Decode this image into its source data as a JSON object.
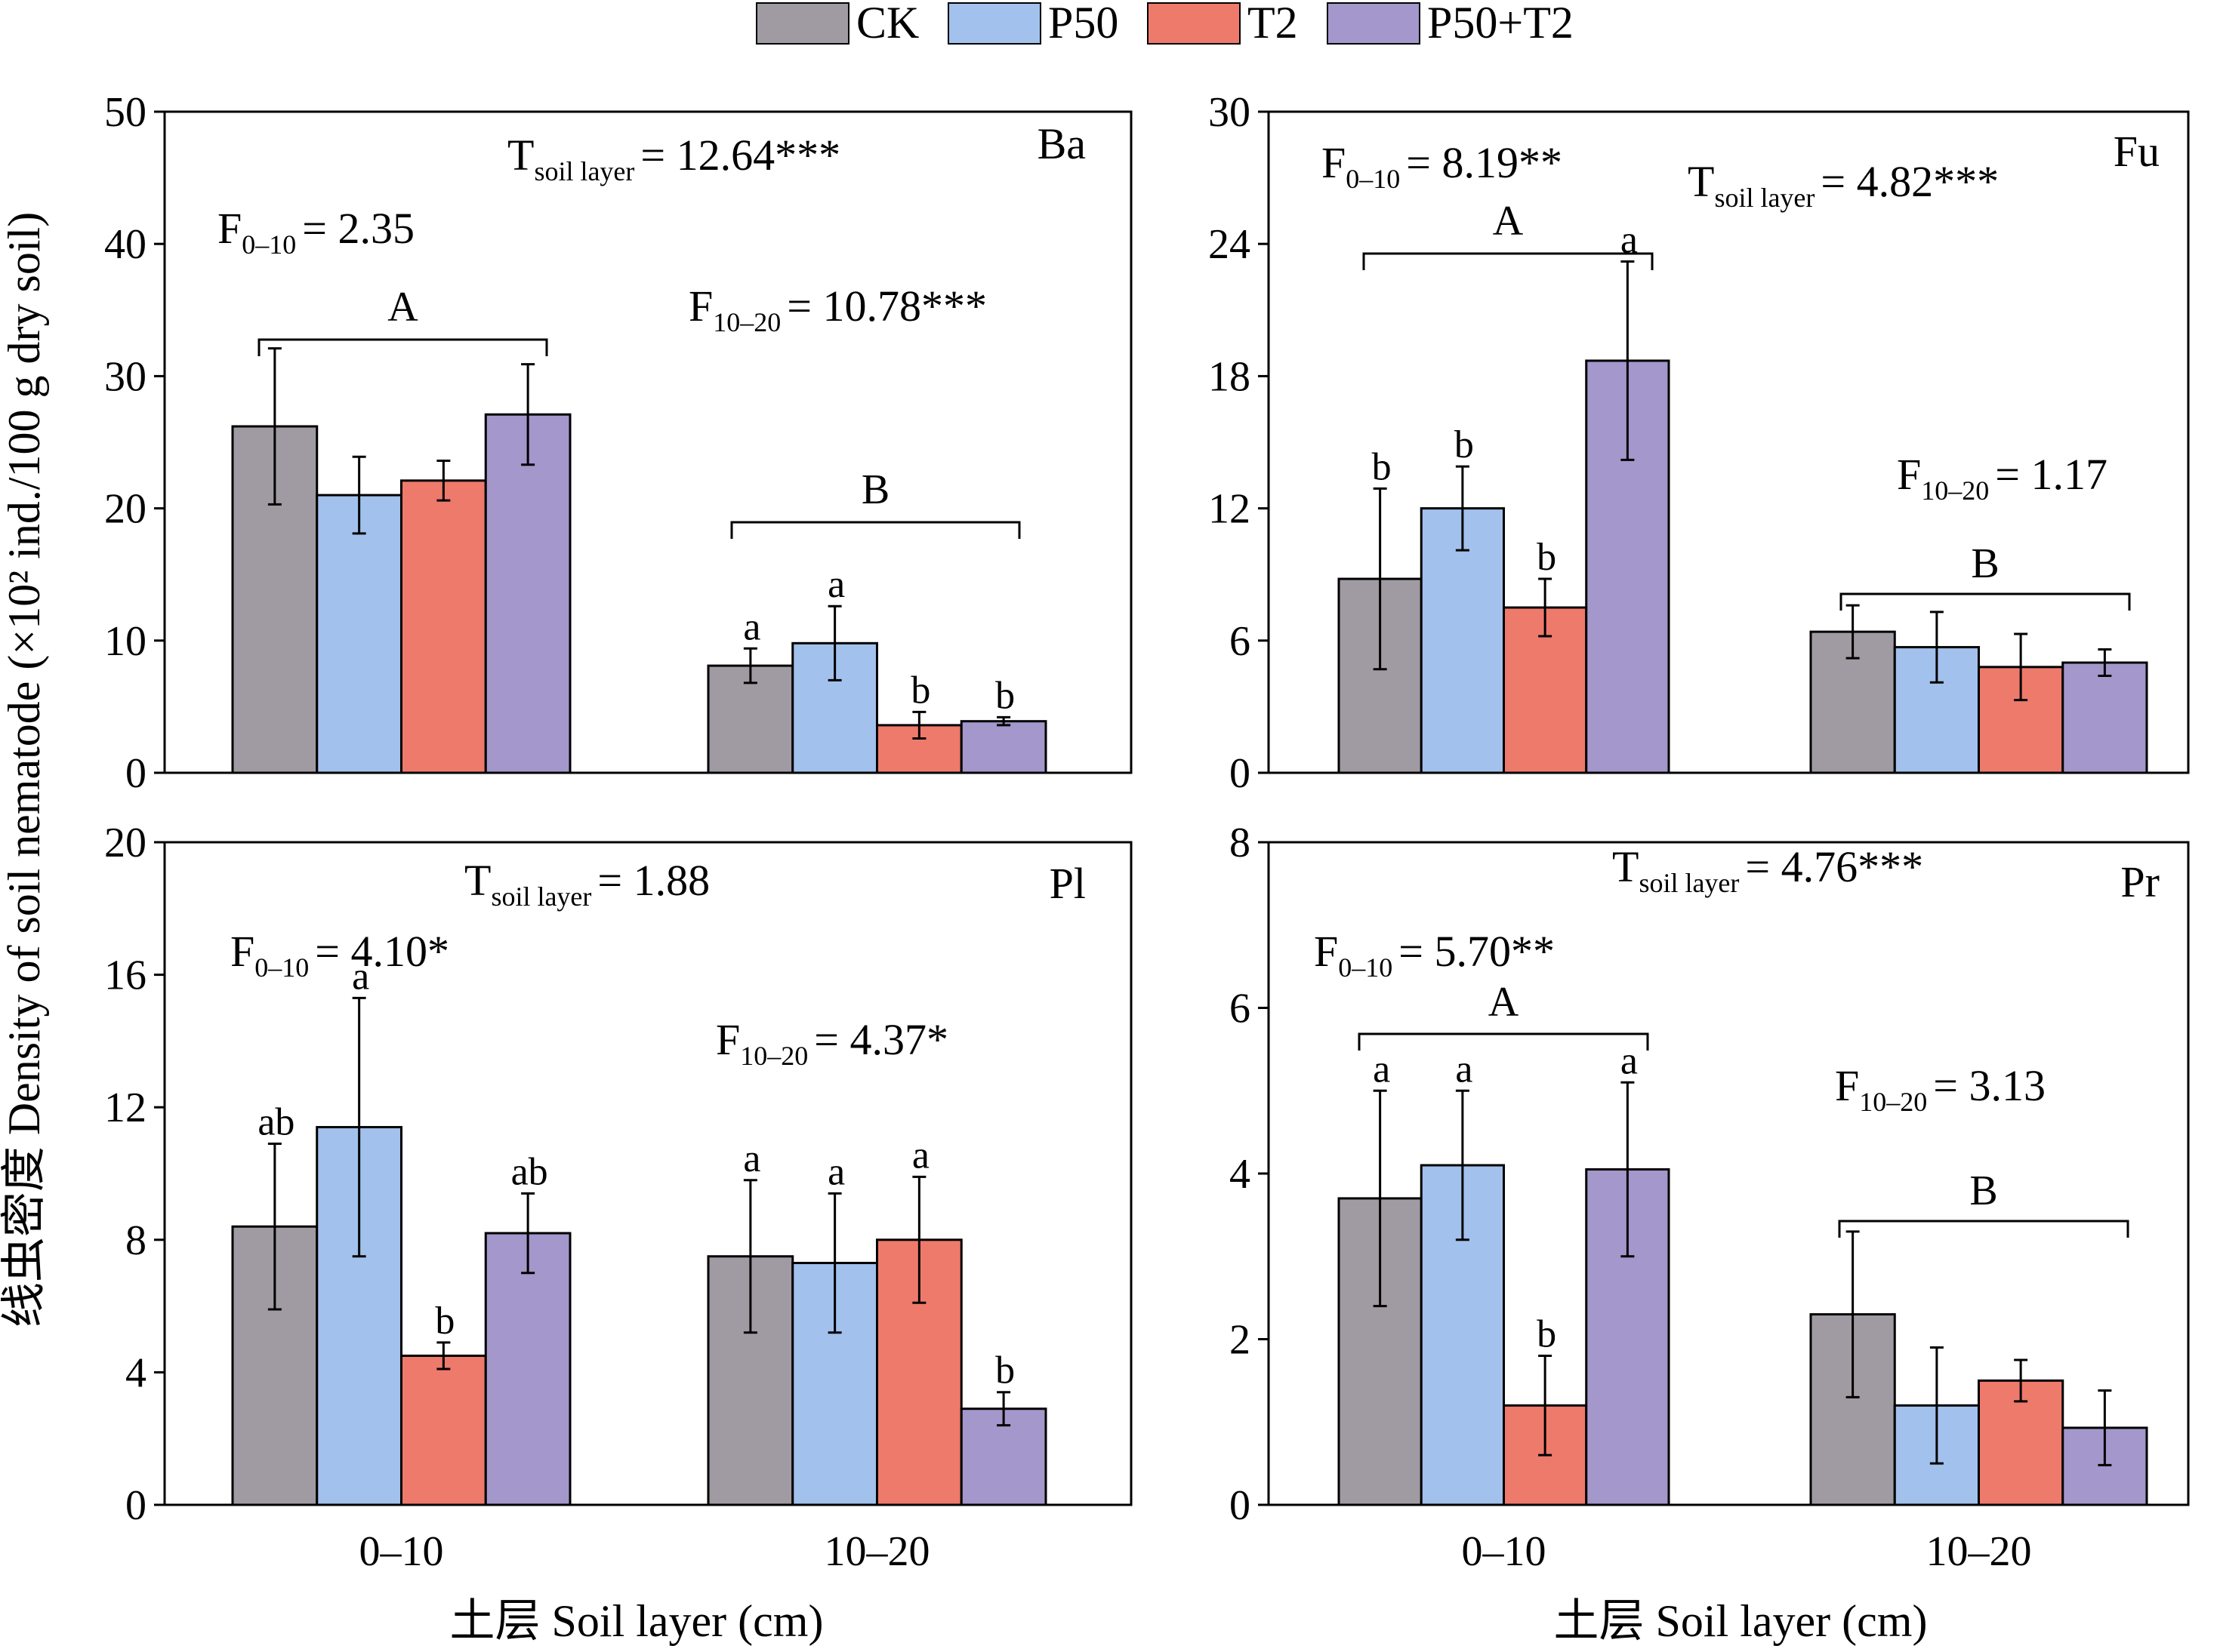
{
  "legend": [
    {
      "label": "CK",
      "color": "#a09ba2"
    },
    {
      "label": "P50",
      "color": "#a2c1ec"
    },
    {
      "label": "T2",
      "color": "#ee7a6c"
    },
    {
      "label": "P50+T2",
      "color": "#a497cb"
    }
  ],
  "y_axis_title": "线虫密度 Density of soil nematode (×10² ind./100 g dry soil)",
  "x_axis_title": "土层 Soil layer (cm)",
  "chart_data": [
    {
      "type": "bar",
      "panel": "Ba",
      "categories": [
        "0–10",
        "10–20"
      ],
      "ylim": [
        0,
        50
      ],
      "yticks": [
        0,
        10,
        20,
        30,
        40,
        50
      ],
      "series": [
        {
          "name": "CK",
          "values": [
            26.2,
            8.1
          ],
          "errors": [
            5.9,
            1.3
          ]
        },
        {
          "name": "P50",
          "values": [
            21.0,
            9.8
          ],
          "errors": [
            2.9,
            2.8
          ]
        },
        {
          "name": "T2",
          "values": [
            22.1,
            3.6
          ],
          "errors": [
            1.5,
            1.0
          ]
        },
        {
          "name": "P50+T2",
          "values": [
            27.1,
            3.9
          ],
          "errors": [
            3.8,
            0.3
          ]
        }
      ],
      "letters": [
        [
          "",
          "a"
        ],
        [
          "",
          "a"
        ],
        [
          "",
          "b"
        ],
        [
          "",
          "b"
        ]
      ],
      "group_letters": [
        "A",
        "B"
      ],
      "stats": [
        {
          "main": "T",
          "sub": "soil layer",
          "value": "= 12.64***"
        },
        {
          "main": "F",
          "sub": "0–10",
          "value": "= 2.35"
        },
        {
          "main": "F",
          "sub": "10–20",
          "value": "= 10.78***"
        }
      ]
    },
    {
      "type": "bar",
      "panel": "Fu",
      "categories": [
        "0–10",
        "10–20"
      ],
      "ylim": [
        0,
        30
      ],
      "yticks": [
        0,
        6,
        12,
        18,
        24,
        30
      ],
      "series": [
        {
          "name": "CK",
          "values": [
            8.8,
            6.4
          ],
          "errors": [
            4.1,
            1.2
          ]
        },
        {
          "name": "P50",
          "values": [
            12.0,
            5.7
          ],
          "errors": [
            1.9,
            1.6
          ]
        },
        {
          "name": "T2",
          "values": [
            7.5,
            4.8
          ],
          "errors": [
            1.3,
            1.5
          ]
        },
        {
          "name": "P50+T2",
          "values": [
            18.7,
            5.0
          ],
          "errors": [
            4.5,
            0.6
          ]
        }
      ],
      "letters": [
        [
          "b",
          ""
        ],
        [
          "b",
          ""
        ],
        [
          "b",
          ""
        ],
        [
          "a",
          ""
        ]
      ],
      "group_letters": [
        "A",
        "B"
      ],
      "stats": [
        {
          "main": "F",
          "sub": "0–10",
          "value": "= 8.19**"
        },
        {
          "main": "T",
          "sub": "soil layer",
          "value": "= 4.82***"
        },
        {
          "main": "F",
          "sub": "10–20",
          "value": "= 1.17"
        }
      ]
    },
    {
      "type": "bar",
      "panel": "Pl",
      "categories": [
        "0–10",
        "10–20"
      ],
      "ylim": [
        0,
        20
      ],
      "yticks": [
        0,
        4,
        8,
        12,
        16,
        20
      ],
      "series": [
        {
          "name": "CK",
          "values": [
            8.4,
            7.5
          ],
          "errors": [
            2.5,
            2.3
          ]
        },
        {
          "name": "P50",
          "values": [
            11.4,
            7.3
          ],
          "errors": [
            3.9,
            2.1
          ]
        },
        {
          "name": "T2",
          "values": [
            4.5,
            8.0
          ],
          "errors": [
            0.4,
            1.9
          ]
        },
        {
          "name": "P50+T2",
          "values": [
            8.2,
            2.9
          ],
          "errors": [
            1.2,
            0.5
          ]
        }
      ],
      "letters": [
        [
          "ab",
          "a"
        ],
        [
          "a",
          "a"
        ],
        [
          "b",
          "a"
        ],
        [
          "ab",
          "b"
        ]
      ],
      "group_letters": [
        "",
        ""
      ],
      "stats": [
        {
          "main": "T",
          "sub": "soil layer",
          "value": "= 1.88"
        },
        {
          "main": "F",
          "sub": "0–10",
          "value": "= 4.10*"
        },
        {
          "main": "F",
          "sub": "10–20",
          "value": "= 4.37*"
        }
      ]
    },
    {
      "type": "bar",
      "panel": "Pr",
      "categories": [
        "0–10",
        "10–20"
      ],
      "ylim": [
        0,
        8
      ],
      "yticks": [
        0,
        2,
        4,
        6,
        8
      ],
      "series": [
        {
          "name": "CK",
          "values": [
            3.7,
            2.3
          ],
          "errors": [
            1.3,
            1.0
          ]
        },
        {
          "name": "P50",
          "values": [
            4.1,
            1.2
          ],
          "errors": [
            0.9,
            0.7
          ]
        },
        {
          "name": "T2",
          "values": [
            1.2,
            1.5
          ],
          "errors": [
            0.6,
            0.25
          ]
        },
        {
          "name": "P50+T2",
          "values": [
            4.05,
            0.93
          ],
          "errors": [
            1.05,
            0.45
          ]
        }
      ],
      "letters": [
        [
          "a",
          ""
        ],
        [
          "a",
          ""
        ],
        [
          "b",
          ""
        ],
        [
          "a",
          ""
        ]
      ],
      "group_letters": [
        "A",
        "B"
      ],
      "stats": [
        {
          "main": "T",
          "sub": "soil layer",
          "value": "= 4.76***"
        },
        {
          "main": "F",
          "sub": "0–10",
          "value": "= 5.70**"
        },
        {
          "main": "F",
          "sub": "10–20",
          "value": "= 3.13"
        }
      ]
    }
  ]
}
